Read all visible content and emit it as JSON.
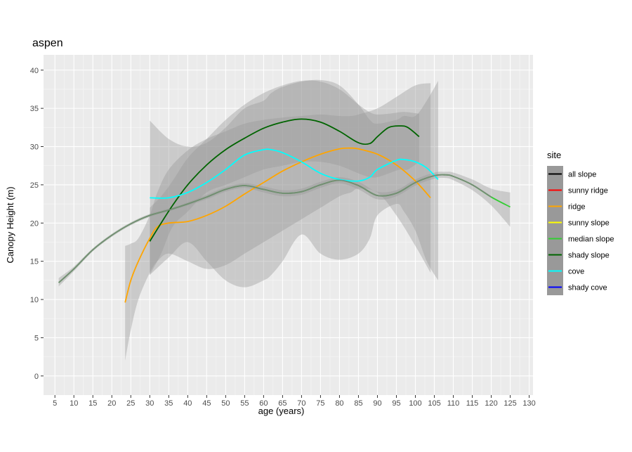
{
  "chart_data": {
    "type": "line",
    "title": "aspen",
    "xlabel": "age (years)",
    "ylabel": "Canopy Height (m)",
    "xlim": [
      2,
      131
    ],
    "ylim": [
      -2.5,
      42
    ],
    "x_ticks": [
      5,
      10,
      15,
      20,
      25,
      30,
      35,
      40,
      45,
      50,
      55,
      60,
      65,
      70,
      75,
      80,
      85,
      90,
      95,
      100,
      105,
      110,
      115,
      120,
      125,
      130
    ],
    "y_ticks": [
      0,
      5,
      10,
      15,
      20,
      25,
      30,
      35,
      40
    ],
    "grid": true,
    "legend": {
      "title": "site",
      "position": "right",
      "entries": [
        {
          "name": "all slope",
          "color": "#000000"
        },
        {
          "name": "sunny ridge",
          "color": "#ff0000"
        },
        {
          "name": "ridge",
          "color": "#ffa500"
        },
        {
          "name": "sunny slope",
          "color": "#ffff00"
        },
        {
          "name": "median slope",
          "color": "#32cd32"
        },
        {
          "name": "shady slope",
          "color": "#006400"
        },
        {
          "name": "cove",
          "color": "#00ffff"
        },
        {
          "name": "shady cove",
          "color": "#0000ff"
        }
      ]
    },
    "series": [
      {
        "name": "ridge",
        "color": "#ffa500",
        "x": [
          23.5,
          25,
          27,
          30,
          32,
          35,
          40,
          45,
          50,
          55,
          60,
          65,
          70,
          75,
          80,
          83,
          85,
          90,
          95,
          100,
          104
        ],
        "y": [
          9.6,
          12.5,
          15.0,
          18.0,
          19.5,
          20.0,
          20.2,
          21.0,
          22.2,
          23.8,
          25.3,
          26.8,
          28.0,
          29.0,
          29.7,
          29.8,
          29.7,
          29.0,
          27.6,
          25.5,
          23.3
        ],
        "band_upper": [
          17.0,
          17.3,
          18.0,
          21.0,
          24.0,
          27.0,
          29.5,
          31.0,
          32.0,
          33.0,
          33.5,
          33.8,
          34.0,
          34.2,
          34.0,
          34.0,
          34.2,
          35.0,
          36.5,
          38.0,
          38.3
        ],
        "band_lower": [
          2.0,
          6.0,
          10.0,
          13.5,
          15.0,
          16.0,
          15.0,
          14.0,
          14.5,
          16.0,
          17.5,
          19.0,
          20.5,
          22.0,
          23.5,
          24.0,
          24.5,
          24.0,
          21.0,
          17.0,
          13.5
        ]
      },
      {
        "name": "median slope",
        "color": "#32cd32",
        "x": [
          6,
          10,
          15,
          20,
          25,
          30,
          35,
          40,
          45,
          50,
          55,
          60,
          65,
          70,
          75,
          80,
          85,
          90,
          95,
          100,
          105,
          108,
          110,
          115,
          120,
          125
        ],
        "y": [
          12.2,
          14.0,
          16.5,
          18.4,
          19.9,
          21.0,
          21.7,
          22.5,
          23.4,
          24.4,
          24.9,
          24.4,
          23.9,
          24.1,
          25.0,
          25.6,
          24.9,
          23.6,
          23.9,
          25.3,
          26.2,
          26.3,
          26.1,
          25.0,
          23.4,
          22.1
        ],
        "band_upper": [
          12.8,
          14.3,
          16.7,
          18.6,
          20.1,
          21.2,
          21.9,
          22.7,
          23.7,
          24.7,
          25.2,
          24.8,
          24.3,
          24.5,
          25.4,
          26.0,
          25.4,
          24.1,
          24.3,
          25.7,
          26.6,
          26.7,
          26.6,
          25.7,
          24.5,
          24.0
        ],
        "band_lower": [
          11.7,
          13.7,
          16.3,
          18.2,
          19.7,
          20.8,
          21.5,
          22.3,
          23.1,
          24.1,
          24.6,
          24.0,
          23.5,
          23.7,
          24.6,
          25.2,
          24.4,
          23.1,
          23.5,
          24.9,
          25.8,
          25.9,
          25.6,
          24.3,
          22.3,
          19.5
        ]
      },
      {
        "name": "shady slope",
        "color": "#006400",
        "x": [
          30,
          33,
          36,
          40,
          45,
          50,
          55,
          60,
          65,
          70,
          75,
          80,
          85,
          88,
          90,
          93,
          96,
          98,
          101
        ],
        "y": [
          17.6,
          20.0,
          22.3,
          25.0,
          27.6,
          29.6,
          31.1,
          32.4,
          33.2,
          33.6,
          33.2,
          32.0,
          30.5,
          30.4,
          31.3,
          32.5,
          32.7,
          32.5,
          31.3
        ],
        "band_upper": [
          22.0,
          23.5,
          25.5,
          28.5,
          31.0,
          33.5,
          35.5,
          37.0,
          38.0,
          38.6,
          38.5,
          37.5,
          35.5,
          34.5,
          34.2,
          34.3,
          34.5,
          34.5,
          34.3
        ],
        "band_lower": [
          13.2,
          16.0,
          19.5,
          21.5,
          24.0,
          25.0,
          26.0,
          27.0,
          27.5,
          28.0,
          28.0,
          27.5,
          26.5,
          26.0,
          26.0,
          26.5,
          27.0,
          27.0,
          28.0
        ]
      },
      {
        "name": "cove",
        "color": "#00ffff",
        "x": [
          30,
          35,
          40,
          45,
          50,
          55,
          60,
          62,
          65,
          70,
          75,
          80,
          85,
          88,
          90,
          95,
          97,
          100,
          103,
          106
        ],
        "y": [
          23.3,
          23.3,
          24.0,
          25.3,
          27.0,
          28.9,
          29.6,
          29.6,
          29.2,
          28.0,
          26.5,
          25.7,
          25.5,
          26.0,
          27.0,
          28.2,
          28.3,
          28.0,
          27.2,
          25.7
        ],
        "band_upper": [
          33.4,
          31.0,
          30.0,
          30.5,
          32.5,
          35.0,
          36.0,
          37.0,
          37.8,
          38.5,
          38.7,
          38.0,
          35.5,
          33.5,
          33.0,
          33.5,
          34.0,
          34.0,
          36.0,
          38.6
        ],
        "band_lower": [
          13.2,
          15.5,
          17.5,
          15.0,
          12.5,
          11.6,
          12.5,
          13.2,
          15.0,
          18.5,
          16.0,
          15.2,
          16.0,
          18.0,
          21.0,
          22.5,
          21.5,
          19.0,
          15.0,
          12.5
        ]
      }
    ]
  }
}
